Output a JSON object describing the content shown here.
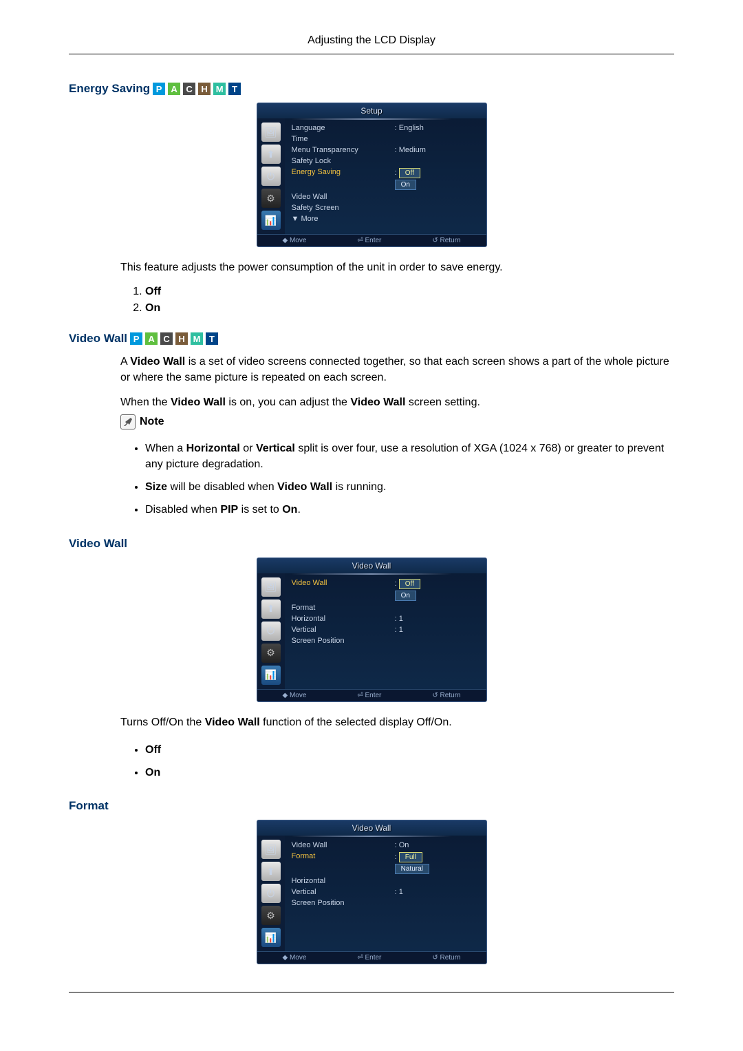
{
  "page_header": "Adjusting the LCD Display",
  "badges": {
    "P": "P",
    "A": "A",
    "C": "C",
    "H": "H",
    "M": "M",
    "T": "T"
  },
  "colors": {
    "heading": "#003366",
    "osd_bg_top": "#0a1a33",
    "osd_bg_bottom": "#0f2a4a",
    "highlight": "#f0c040"
  },
  "energy_saving": {
    "heading": "Energy Saving",
    "osd": {
      "title": "Setup",
      "items": [
        {
          "label": "Language",
          "value": ": English",
          "hl": false
        },
        {
          "label": "Time",
          "value": "",
          "hl": false
        },
        {
          "label": "Menu Transparency",
          "value": ": Medium",
          "hl": false
        },
        {
          "label": "Safety Lock",
          "value": "",
          "hl": false
        },
        {
          "label": "Energy Saving",
          "value": "",
          "hl": true,
          "options": [
            "Off",
            "On"
          ],
          "selected": "Off"
        },
        {
          "label": "Video Wall",
          "value": "",
          "hl": false
        },
        {
          "label": "Safety Screen",
          "value": "",
          "hl": false
        },
        {
          "label": "▼ More",
          "value": "",
          "hl": false
        }
      ],
      "footer": [
        "Move",
        "Enter",
        "Return"
      ]
    },
    "desc": "This feature adjusts the power consumption of the unit in order to save energy.",
    "list": [
      "Off",
      "On"
    ]
  },
  "video_wall_intro": {
    "heading": "Video Wall",
    "p1_pre": "A ",
    "p1_b": "Video Wall",
    "p1_post": " is a set of video screens connected together, so that each screen shows a part of the whole picture or where the same picture is repeated on each screen.",
    "p2_pre": "When the ",
    "p2_b": "Video Wall",
    "p2_post": " is on, you can adjust the ",
    "p2_b2": "Video Wall",
    "p2_post2": " screen setting.",
    "note_label": "Note",
    "bullets": [
      {
        "pre": "When a ",
        "b1": "Horizontal",
        "mid": " or ",
        "b2": "Vertical",
        "post": " split is over four, use a resolution of XGA (1024 x 768) or greater to prevent any picture degradation."
      },
      {
        "b1": "Size",
        "post": " will be disabled when ",
        "b2": "Video Wall",
        "post2": " is running."
      },
      {
        "pre": "Disabled when ",
        "b1": "PIP",
        "mid": " is set to ",
        "b2": "On",
        "post": "."
      }
    ]
  },
  "video_wall_section": {
    "heading": "Video Wall",
    "osd": {
      "title": "Video Wall",
      "items": [
        {
          "label": "Video Wall",
          "value": "",
          "hl": true,
          "options": [
            "Off",
            "On"
          ],
          "selected": "Off"
        },
        {
          "label": "Format",
          "value": "",
          "hl": false
        },
        {
          "label": "Horizontal",
          "value": ": 1",
          "hl": false
        },
        {
          "label": "Vertical",
          "value": ": 1",
          "hl": false
        },
        {
          "label": "Screen Position",
          "value": "",
          "hl": false
        }
      ],
      "footer": [
        "Move",
        "Enter",
        "Return"
      ]
    },
    "desc_pre": "Turns Off/On the ",
    "desc_b": "Video Wall",
    "desc_post": " function of the selected display Off/On.",
    "list": [
      "Off",
      "On"
    ]
  },
  "format_section": {
    "heading": "Format",
    "osd": {
      "title": "Video Wall",
      "items": [
        {
          "label": "Video Wall",
          "value": ": On",
          "hl": false
        },
        {
          "label": "Format",
          "value": "",
          "hl": true,
          "options": [
            "Full",
            "Natural"
          ],
          "selected": "Full"
        },
        {
          "label": "Horizontal",
          "value": "",
          "hl": false
        },
        {
          "label": "Vertical",
          "value": ": 1",
          "hl": false
        },
        {
          "label": "Screen Position",
          "value": "",
          "hl": false
        }
      ],
      "footer": [
        "Move",
        "Enter",
        "Return"
      ]
    }
  },
  "osd_icons": [
    "🖼",
    "⬆",
    "⏻",
    "⚙",
    "📊"
  ]
}
